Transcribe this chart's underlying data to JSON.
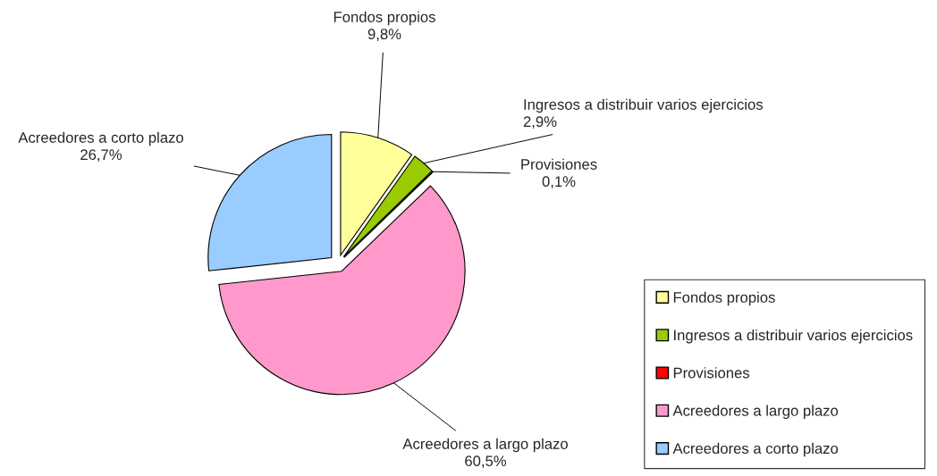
{
  "chart_data": {
    "type": "pie",
    "categories": [
      "Fondos propios",
      "Ingresos a distribuir varios ejercicios",
      "Provisiones",
      "Acreedores a largo plazo",
      "Acreedores a corto plazo"
    ],
    "values": [
      9.8,
      2.9,
      0.1,
      60.5,
      26.7
    ],
    "value_labels": [
      "9,8%",
      "2,9%",
      "0,1%",
      "60,5%",
      "26,7%"
    ],
    "colors": [
      "#ffff99",
      "#99cc00",
      "#ff0000",
      "#ff99cc",
      "#99ccff"
    ],
    "legend": "bottom right"
  }
}
